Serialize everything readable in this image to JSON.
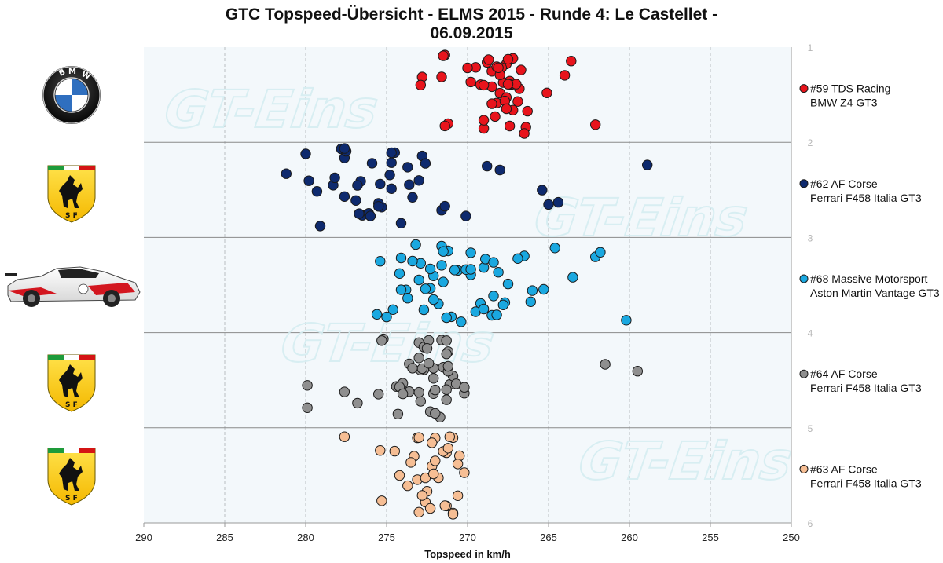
{
  "chart_data": {
    "type": "scatter",
    "title": [
      "GTC Topspeed-Übersicht - ELMS 2015 - Runde 4: Le Castellet -",
      "06.09.2015"
    ],
    "xlabel": "Topspeed in km/h",
    "ylabel": "",
    "xlim": [
      290,
      250
    ],
    "ylim": [
      1,
      6
    ],
    "x_ticks": [
      "290",
      "285",
      "280",
      "275",
      "270",
      "265",
      "260",
      "255",
      "250"
    ],
    "y_ticks": [
      "1",
      "2",
      "3",
      "4",
      "5",
      "6"
    ],
    "grid": true,
    "legend_position": "right",
    "series": [
      {
        "name": "#59 TDS Racing",
        "sub": "BMW Z4 GT3",
        "color": "#e8141c",
        "lane": 1,
        "x": [
          262.1,
          266.4,
          267.2,
          267.3,
          267.4,
          267.6,
          267.8,
          268.0,
          268.2,
          268.5,
          268.8,
          269.0,
          269.2,
          269.5,
          265.1,
          264.0,
          263.6,
          266.3,
          272.8,
          271.6,
          271.4,
          271.2,
          270.0,
          269.0,
          268.5,
          267.9,
          267.6,
          267.4,
          267.2,
          266.9,
          268.7,
          268.2,
          272.9,
          271.5,
          266.5,
          269.8,
          268.5,
          267.7,
          271.4,
          268.0,
          267.4,
          266.8,
          267.0,
          268.3,
          269.0,
          267.5,
          266.7,
          268.1,
          267.6,
          267.5
        ]
      },
      {
        "name": "#62 AF Corse",
        "sub": "Ferrari F458 Italia GT3",
        "color": "#0e2a6e",
        "lane": 2,
        "x": [
          277.6,
          276.5,
          275.3,
          274.5,
          273.7,
          272.8,
          271.6,
          268.8,
          265.4,
          264.4,
          258.9,
          276.6,
          274.7,
          273.4,
          272.6,
          271.4,
          270.1,
          268.0,
          265.0,
          281.2,
          280.0,
          279.3,
          278.3,
          277.8,
          276.9,
          275.5,
          274.7,
          273.6,
          279.8,
          279.1,
          278.2,
          277.5,
          276.7,
          276.1,
          277.6,
          276.8,
          275.9,
          275.5,
          274.8,
          274.1,
          277.6,
          276.0,
          275.4,
          274.7,
          273.0
        ]
      },
      {
        "name": "#68 Massive Motorsport",
        "sub": "Aston Martin Vantage GT3",
        "color": "#1aa8e0",
        "lane": 3,
        "x": [
          268.1,
          269.2,
          269.8,
          266.1,
          265.3,
          264.6,
          262.1,
          260.2,
          263.5,
          261.8,
          269.0,
          268.5,
          270.4,
          271.6,
          268.2,
          266.5,
          273.8,
          272.7,
          271.2,
          270.6,
          269.8,
          268.9,
          267.7,
          266.9,
          275.6,
          274.1,
          273.0,
          272.3,
          271.5,
          270.1,
          268.4,
          271.0,
          275.4,
          274.1,
          273.2,
          272.6,
          271.8,
          269.5,
          267.8,
          266.0,
          269.0,
          268.4,
          267.5,
          270.8,
          272.1,
          271.3,
          274.6,
          273.7,
          272.9,
          272.1,
          271.5,
          275.0,
          274.2,
          273.4,
          272.3,
          271.6,
          269.8
        ]
      },
      {
        "name": "#64 AF Corse",
        "sub": "Ferrari F458 Italia GT3",
        "color": "#8f8f8f",
        "lane": 4,
        "x": [
          274.4,
          273.6,
          273.0,
          272.7,
          272.3,
          271.6,
          271.1,
          270.2,
          261.5,
          274.0,
          272.9,
          272.1,
          271.3,
          270.9,
          279.9,
          274.2,
          273.6,
          272.8,
          272.1,
          271.5,
          271.2,
          279.9,
          275.2,
          273.4,
          272.7,
          272.1,
          271.2,
          277.6,
          276.8,
          275.5,
          274.3,
          272.9,
          272.0,
          271.2,
          275.3,
          273.0,
          272.4,
          271.7,
          271.3,
          273.0,
          272.4,
          271.3,
          270.7,
          270.2,
          259.5,
          274.0,
          272.5,
          272.0,
          271.3
        ]
      },
      {
        "name": "#63 AF Corse",
        "sub": "Ferrari F458 Italia GT3",
        "color": "#f6be94",
        "lane": 5,
        "x": [
          275.3,
          273.1,
          272.5,
          272.0,
          271.3,
          270.9,
          273.0,
          272.2,
          271.5,
          270.9,
          270.2,
          272.6,
          271.8,
          271.3,
          270.5,
          277.6,
          273.1,
          272.3,
          271.4,
          270.6,
          275.4,
          274.2,
          273.3,
          272.6,
          272.0,
          271.2,
          273.5,
          272.8,
          272.1,
          270.9,
          274.5,
          273.7,
          273.0,
          272.2,
          271.1,
          270.6
        ]
      }
    ]
  },
  "watermark": "GT-Eins",
  "icons": [
    "bmw-logo",
    "ferrari-logo",
    "aston-martin-car",
    "ferrari-logo",
    "ferrari-logo"
  ]
}
